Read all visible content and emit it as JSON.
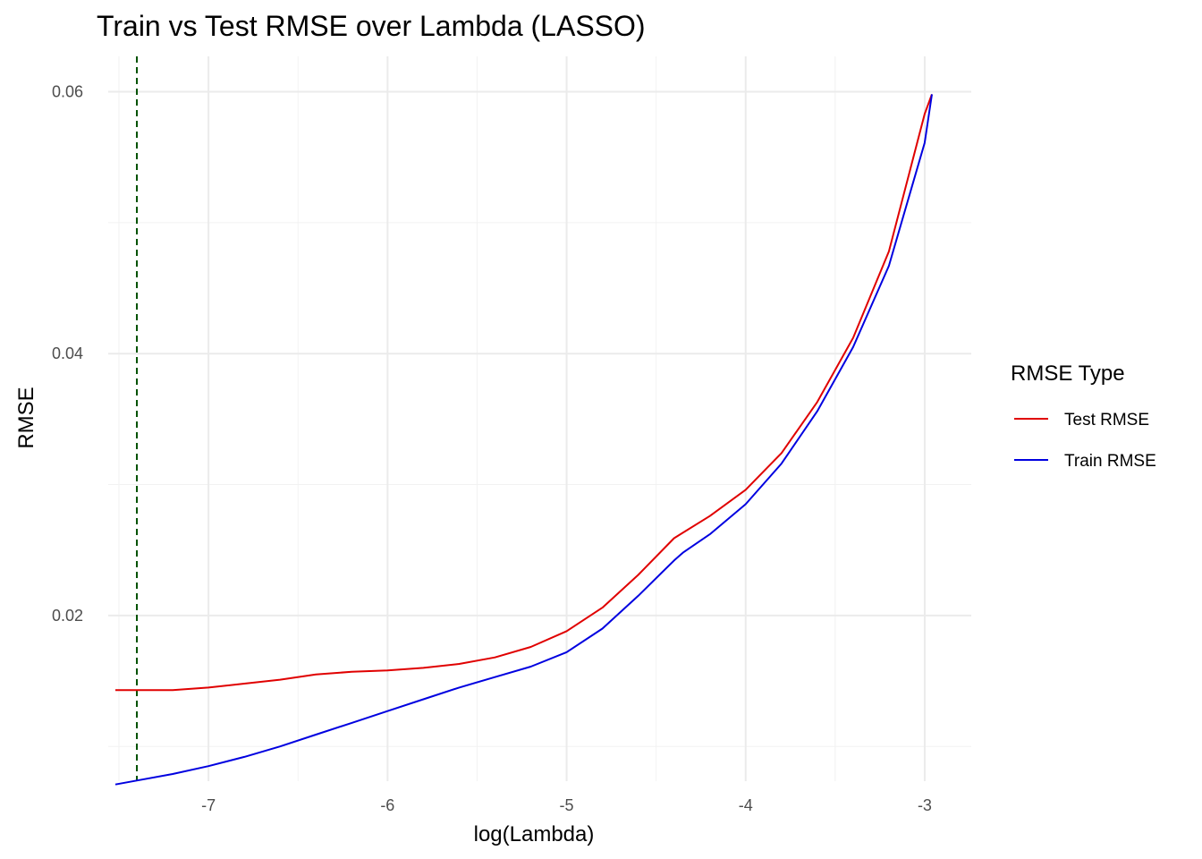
{
  "chart_data": {
    "type": "line",
    "title": "Train vs Test RMSE over Lambda (LASSO)",
    "xlabel": "log(Lambda)",
    "ylabel": "RMSE",
    "xlim": [
      -7.56,
      -2.74
    ],
    "ylim": [
      0.00735,
      0.0627
    ],
    "x_ticks": [
      -7,
      -6,
      -5,
      -4,
      -3
    ],
    "x_tick_labels": [
      "-7",
      "-6",
      "-5",
      "-4",
      "-3"
    ],
    "y_ticks": [
      0.02,
      0.04,
      0.06
    ],
    "y_tick_labels": [
      "0.02",
      "0.04",
      "0.06"
    ],
    "grid": true,
    "legend": {
      "title": "RMSE Type",
      "position": "right",
      "entries": [
        "Test RMSE",
        "Train RMSE"
      ]
    },
    "reference_lines": [
      {
        "orientation": "vertical",
        "x": -7.4,
        "style": "dashed",
        "color": "#005000"
      }
    ],
    "series": [
      {
        "name": "Test RMSE",
        "color": "#e00000",
        "x": [
          -7.52,
          -7.4,
          -7.2,
          -7.0,
          -6.8,
          -6.6,
          -6.4,
          -6.2,
          -6.0,
          -5.8,
          -5.6,
          -5.4,
          -5.2,
          -5.0,
          -4.8,
          -4.6,
          -4.4,
          -4.2,
          -4.0,
          -3.8,
          -3.6,
          -3.4,
          -3.2,
          -3.0,
          -2.96
        ],
        "values": [
          0.0143,
          0.0143,
          0.0143,
          0.0145,
          0.0148,
          0.0151,
          0.0155,
          0.0157,
          0.0158,
          0.016,
          0.0163,
          0.0168,
          0.0176,
          0.0188,
          0.0206,
          0.0231,
          0.0259,
          0.0276,
          0.0296,
          0.0324,
          0.0363,
          0.0412,
          0.0478,
          0.0583,
          0.0598
        ]
      },
      {
        "name": "Train RMSE",
        "color": "#0000e0",
        "x": [
          -7.52,
          -7.4,
          -7.2,
          -7.0,
          -6.8,
          -6.6,
          -6.4,
          -6.2,
          -6.0,
          -5.8,
          -5.6,
          -5.4,
          -5.2,
          -5.0,
          -4.8,
          -4.6,
          -4.4,
          -4.35,
          -4.2,
          -4.0,
          -3.8,
          -3.6,
          -3.4,
          -3.2,
          -3.0,
          -2.96
        ],
        "values": [
          0.0071,
          0.0074,
          0.0079,
          0.0085,
          0.0092,
          0.01,
          0.0109,
          0.0118,
          0.0127,
          0.0136,
          0.0145,
          0.0153,
          0.0161,
          0.0172,
          0.019,
          0.0215,
          0.0242,
          0.0248,
          0.0262,
          0.0285,
          0.0316,
          0.0356,
          0.0405,
          0.0467,
          0.0561,
          0.0598
        ]
      }
    ]
  }
}
